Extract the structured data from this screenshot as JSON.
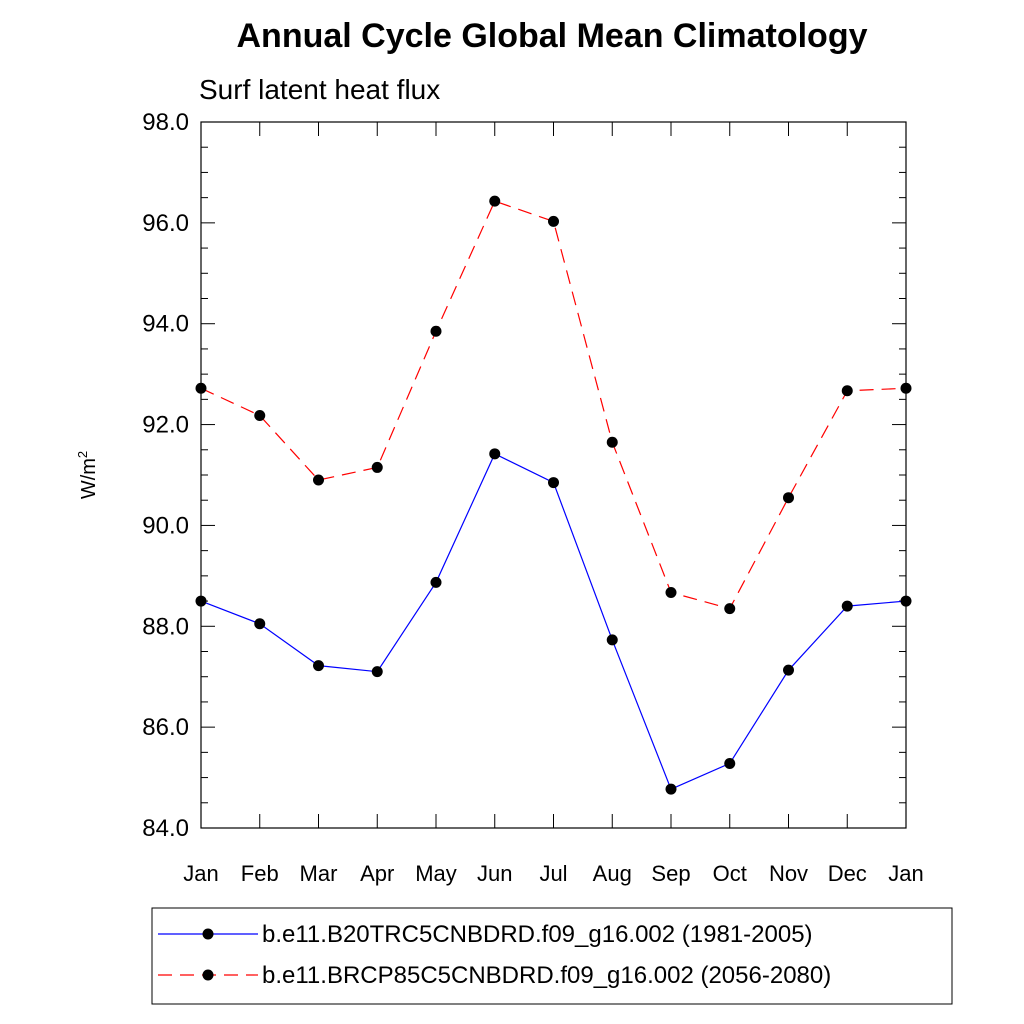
{
  "chart_data": {
    "type": "line",
    "title": "Annual Cycle Global Mean Climatology",
    "subtitle": "Surf latent heat flux",
    "ylabel": "W/m",
    "ylabel_sup": "2",
    "xlabel": "",
    "ylim": [
      84.0,
      98.0
    ],
    "yticks": [
      "84.0",
      "86.0",
      "88.0",
      "90.0",
      "92.0",
      "94.0",
      "96.0",
      "98.0"
    ],
    "categories": [
      "Jan",
      "Feb",
      "Mar",
      "Apr",
      "May",
      "Jun",
      "Jul",
      "Aug",
      "Sep",
      "Oct",
      "Nov",
      "Dec",
      "Jan"
    ],
    "series": [
      {
        "name": "b.e11.B20TRC5CNBDRD.f09_g16.002 (1981-2005)",
        "color": "#0000ff",
        "style": "solid",
        "values": [
          88.5,
          88.05,
          87.22,
          87.1,
          88.87,
          91.42,
          90.85,
          87.73,
          84.77,
          85.28,
          87.13,
          88.4,
          88.5
        ]
      },
      {
        "name": "b.e11.BRCP85C5CNBDRD.f09_g16.002 (2056-2080)",
        "color": "#ff0000",
        "style": "dashed",
        "values": [
          92.72,
          92.18,
          90.9,
          91.15,
          93.85,
          96.43,
          96.03,
          91.65,
          88.67,
          88.35,
          90.55,
          92.67,
          92.72
        ]
      }
    ],
    "grid": false,
    "legend_position": "bottom"
  }
}
